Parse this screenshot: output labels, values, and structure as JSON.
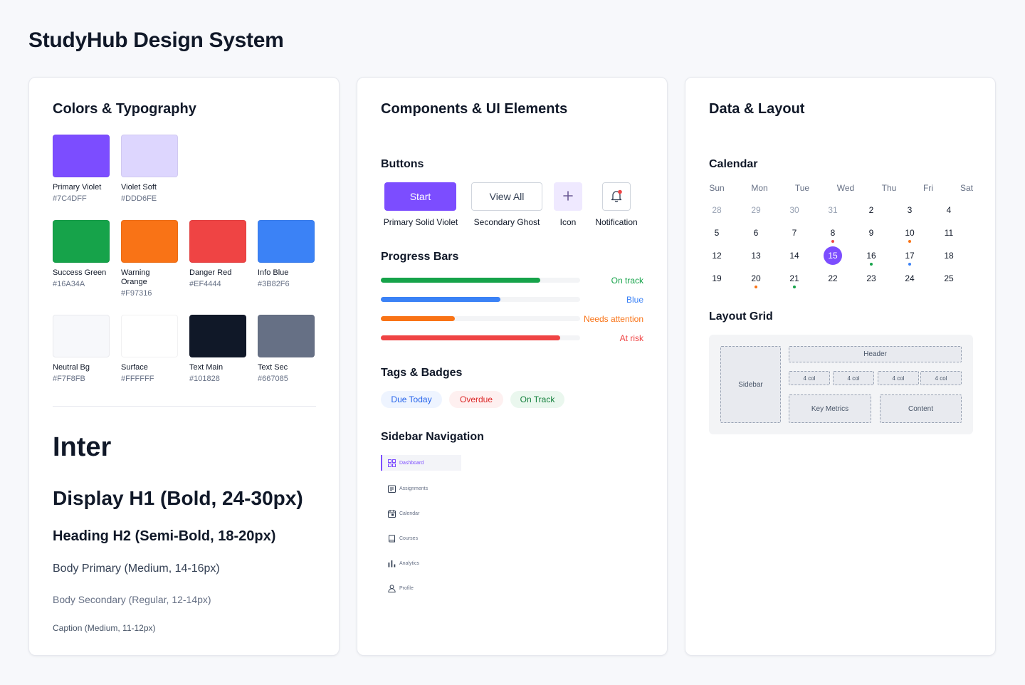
{
  "page_title": "StudyHub Design System",
  "colors_card": {
    "title": "Colors & Typography",
    "swatches": [
      {
        "name": "Primary Violet",
        "hex": "#7C4DFF",
        "color": "#7C4DFF"
      },
      {
        "name": "Violet Soft",
        "hex": "#DDD6FE",
        "color": "#DDD6FE"
      },
      {
        "name": "Success Green",
        "hex": "#16A34A",
        "color": "#16A34A"
      },
      {
        "name": "Warning Orange",
        "hex": "#F97316",
        "color": "#F97316"
      },
      {
        "name": "Danger Red",
        "hex": "#EF4444",
        "color": "#EF4444"
      },
      {
        "name": "Info Blue",
        "hex": "#3B82F6",
        "color": "#3B82F6"
      },
      {
        "name": "Neutral Bg",
        "hex": "#F7F8FB",
        "color": "#F7F8FB"
      },
      {
        "name": "Surface",
        "hex": "#FFFFFF",
        "color": "#FFFFFF"
      },
      {
        "name": "Text Main",
        "hex": "#101828",
        "color": "#101828"
      },
      {
        "name": "Text Sec",
        "hex": "#667085",
        "color": "#667085"
      }
    ],
    "typography": {
      "font_name": "Inter",
      "display": "Display H1 (Bold, 24-30px)",
      "heading": "Heading H2 (Semi-Bold, 18-20px)",
      "body_primary": "Body Primary (Medium, 14-16px)",
      "body_secondary": "Body Secondary (Regular, 12-14px)",
      "caption": "Caption (Medium, 11-12px)"
    }
  },
  "components_card": {
    "title": "Components & UI Elements",
    "buttons": {
      "title": "Buttons",
      "start_label": "Start",
      "view_all_label": "View All",
      "icon_button_glyph": "+",
      "captions": [
        "Primary Solid Violet",
        "Secondary Ghost",
        "Icon",
        "Notification"
      ]
    },
    "progress": {
      "title": "Progress Bars",
      "bars": [
        {
          "label": "On track",
          "value": 0.8,
          "color": "#16A34A"
        },
        {
          "label": "Blue",
          "value": 0.6,
          "color": "#3B82F6"
        },
        {
          "label": "Needs attention",
          "value": 0.37,
          "color": "#F97316"
        },
        {
          "label": "At risk",
          "value": 0.9,
          "color": "#EF4444"
        }
      ]
    },
    "tags": {
      "title": "Tags & Badges",
      "items": [
        {
          "label": "Due Today",
          "fg": "#2563EB",
          "bg": "#EEF4FF"
        },
        {
          "label": "Overdue",
          "fg": "#DC2626",
          "bg": "#FEF0F0"
        },
        {
          "label": "On Track",
          "fg": "#15803D",
          "bg": "#EAF7EE"
        }
      ]
    },
    "sidebar_nav": {
      "title": "Sidebar Navigation",
      "items": [
        {
          "label": "Dashboard",
          "icon": "grid-icon",
          "active": true
        },
        {
          "label": "Assignments",
          "icon": "clipboard-icon",
          "active": false
        },
        {
          "label": "Calendar",
          "icon": "calendar-icon",
          "active": false
        },
        {
          "label": "Courses",
          "icon": "book-icon",
          "active": false
        },
        {
          "label": "Analytics",
          "icon": "bar-chart-icon",
          "active": false
        },
        {
          "label": "Profile",
          "icon": "user-icon",
          "active": false
        }
      ]
    }
  },
  "data_card": {
    "title": "Data & Layout",
    "calendar": {
      "title": "Calendar",
      "weekdays": [
        "Sun",
        "Mon",
        "Tue",
        "Wed",
        "Thu",
        "Fri",
        "Sat"
      ],
      "weeks": [
        [
          {
            "d": "28",
            "muted": true
          },
          {
            "d": "29",
            "muted": true
          },
          {
            "d": "30",
            "muted": true
          },
          {
            "d": "31",
            "muted": true
          },
          {
            "d": "2"
          },
          {
            "d": "3"
          },
          {
            "d": "4"
          }
        ],
        [
          {
            "d": "5"
          },
          {
            "d": "6"
          },
          {
            "d": "7"
          },
          {
            "d": "8",
            "dot": "#EF4444"
          },
          {
            "d": "9"
          },
          {
            "d": "10",
            "dot": "#F97316"
          },
          {
            "d": "11"
          }
        ],
        [
          {
            "d": "12"
          },
          {
            "d": "13"
          },
          {
            "d": "14"
          },
          {
            "d": "15",
            "selected": true
          },
          {
            "d": "16",
            "dot": "#16A34A"
          },
          {
            "d": "17",
            "dot": "#3B82F6"
          },
          {
            "d": "18"
          }
        ],
        [
          {
            "d": "19"
          },
          {
            "d": "20",
            "dot": "#F97316"
          },
          {
            "d": "21",
            "dot": "#16A34A"
          },
          {
            "d": "22"
          },
          {
            "d": "23"
          },
          {
            "d": "24"
          },
          {
            "d": "25"
          }
        ]
      ]
    },
    "layout_grid": {
      "title": "Layout Grid",
      "sidebar": "Sidebar",
      "header": "Header",
      "cols": [
        "4 col",
        "4 col",
        "4 col",
        "4 col"
      ],
      "key_metrics": "Key Metrics",
      "content": "Content"
    }
  },
  "accent_color": "#7C4DFF"
}
